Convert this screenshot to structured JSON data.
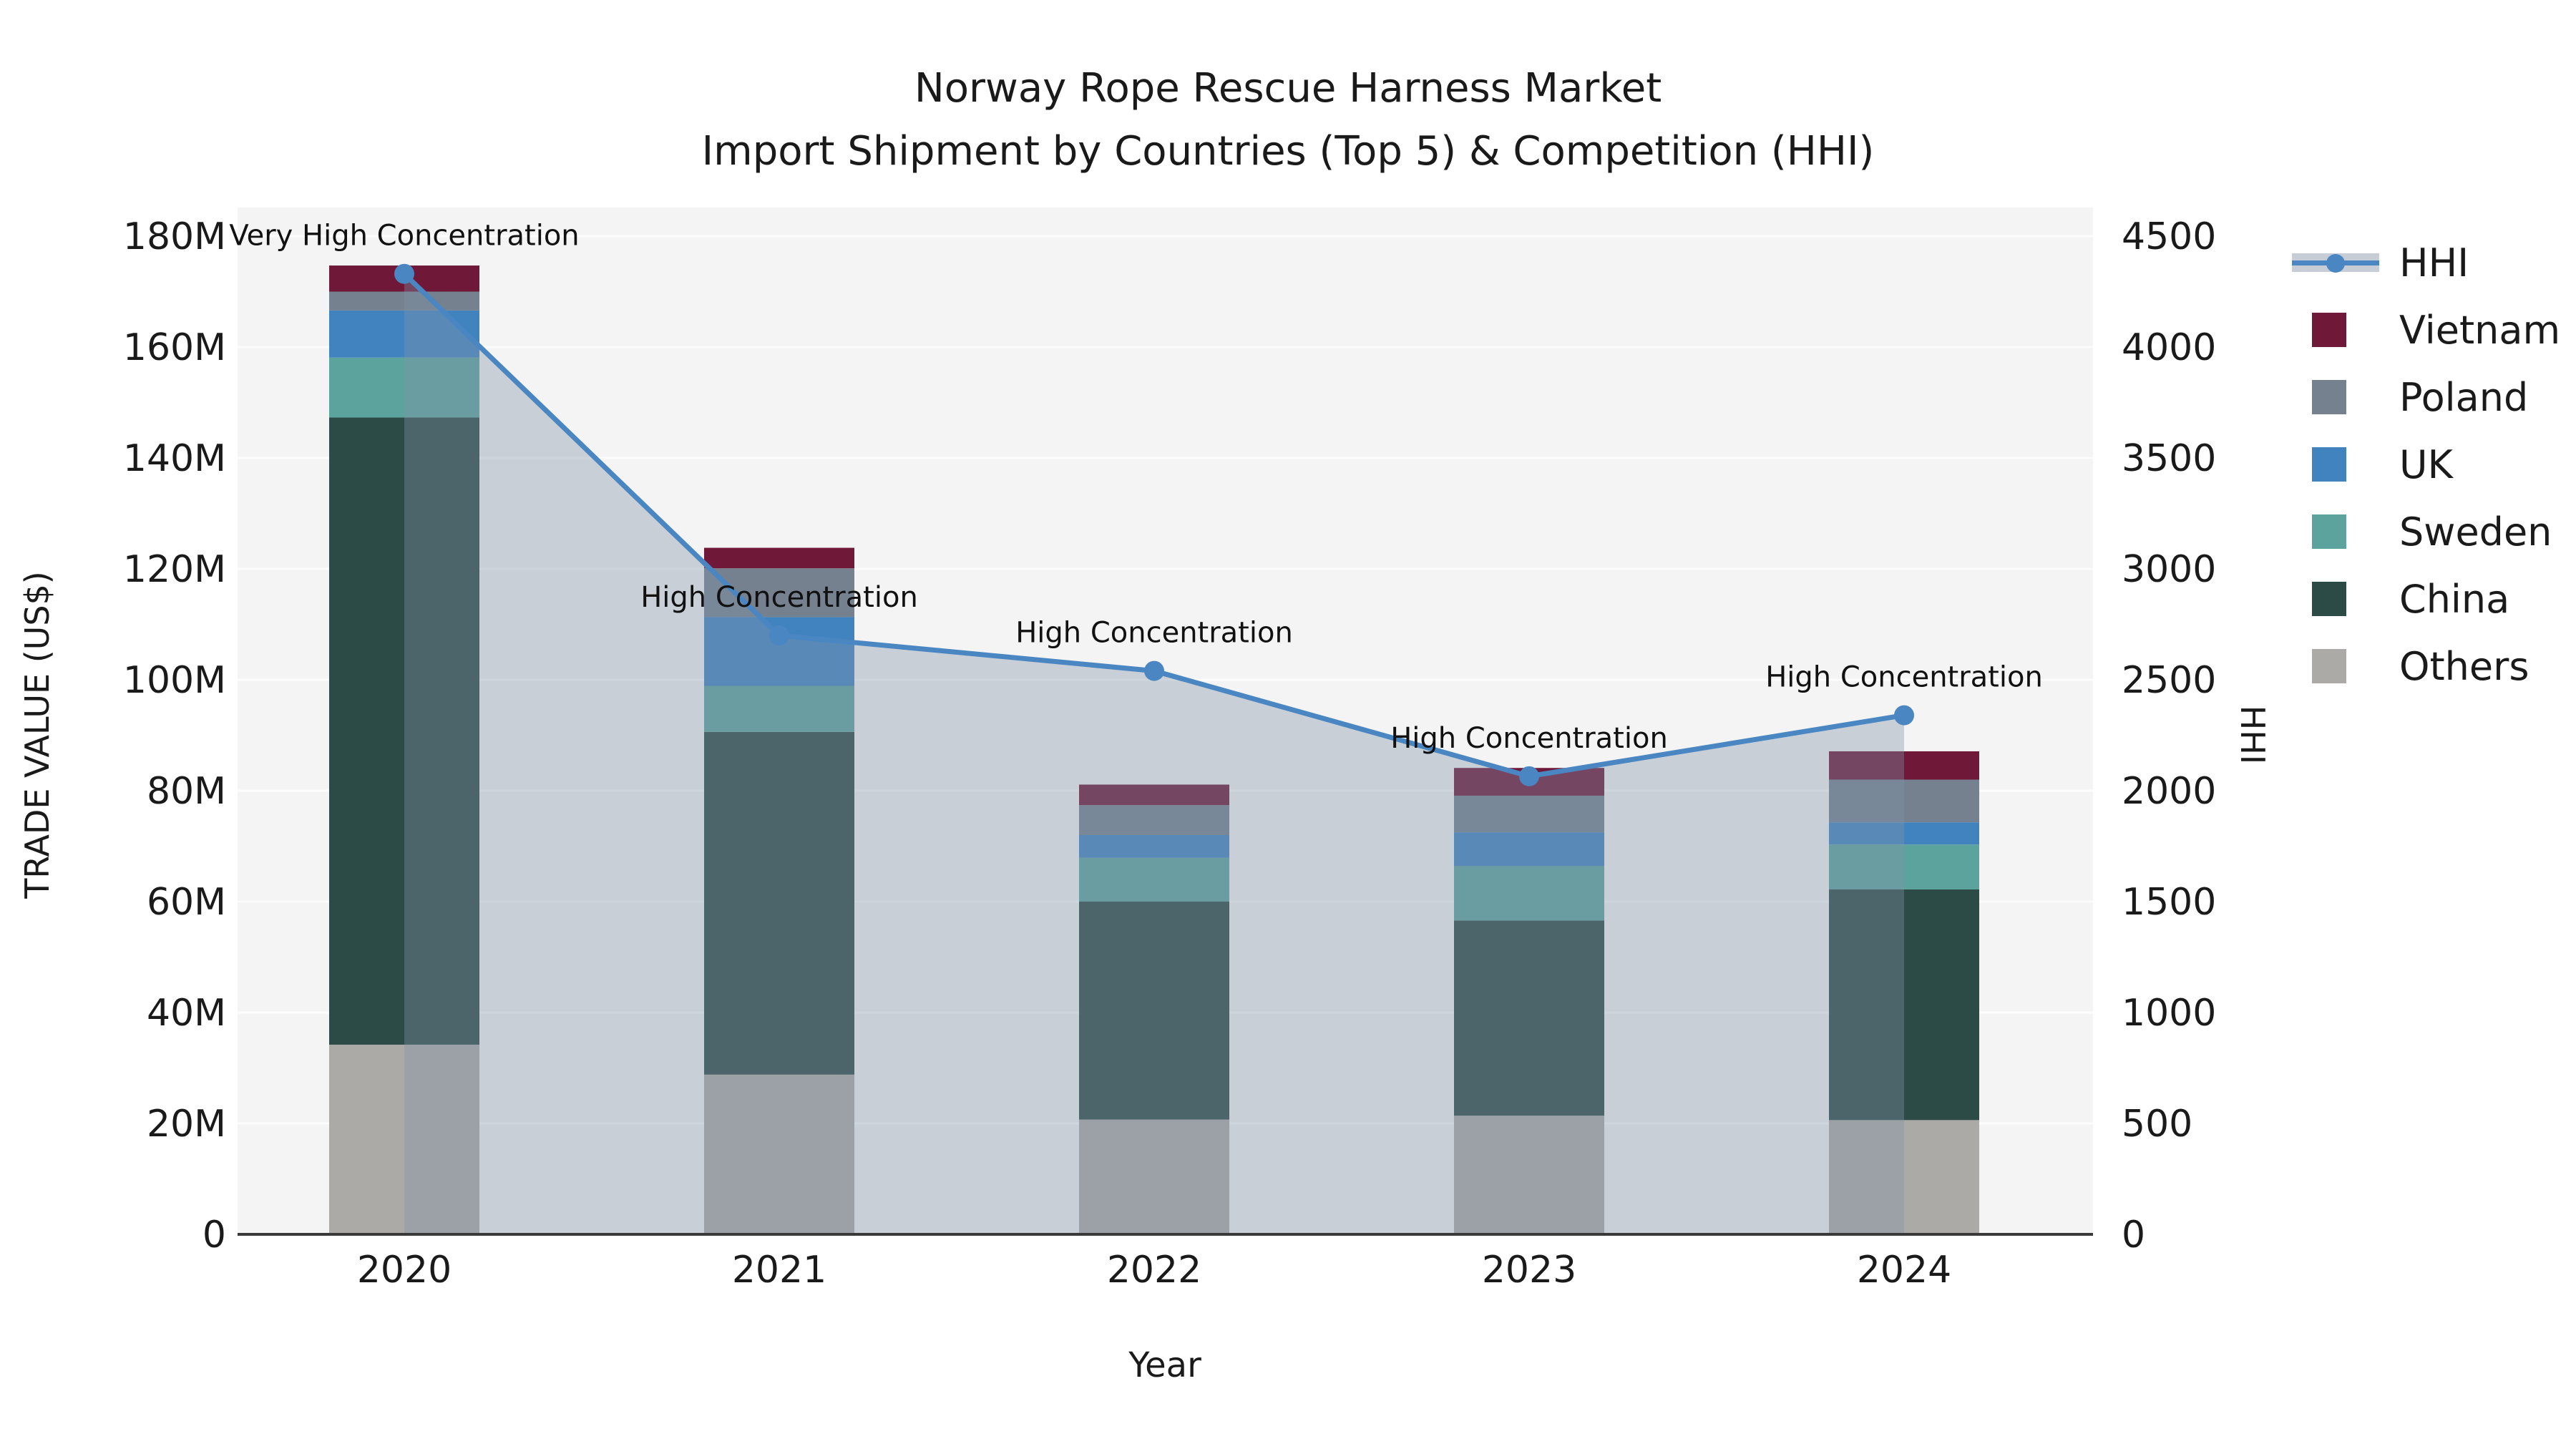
{
  "title": {
    "line1": "Norway Rope Rescue Harness Market",
    "line2": "Import Shipment by Countries (Top 5) & Competition (HHI)"
  },
  "chart_data": {
    "type": "bar+line",
    "categories": [
      "2020",
      "2021",
      "2022",
      "2023",
      "2024"
    ],
    "bar_value_unit": "millions USD",
    "series": [
      {
        "name": "Others",
        "color": "#ACAAA7",
        "values": [
          34.2,
          28.8,
          20.7,
          21.4,
          20.6
        ]
      },
      {
        "name": "China",
        "color": "#2C4A46",
        "values": [
          113.1,
          61.8,
          39.3,
          35.2,
          41.6
        ]
      },
      {
        "name": "Sweden",
        "color": "#5CA39D",
        "values": [
          10.8,
          8.3,
          7.9,
          9.8,
          8.1
        ]
      },
      {
        "name": "UK",
        "color": "#4183BF",
        "values": [
          8.5,
          12.4,
          4.1,
          6.1,
          4.0
        ]
      },
      {
        "name": "Poland",
        "color": "#75818F",
        "values": [
          3.4,
          8.8,
          5.4,
          6.6,
          7.7
        ]
      },
      {
        "name": "Vietnam",
        "color": "#6F1837",
        "values": [
          4.7,
          3.7,
          3.7,
          5.0,
          5.1
        ]
      }
    ],
    "line_series": {
      "name": "HHI",
      "color": "#4A86C2",
      "area_fill_color": "rgba(130,146,168,0.38)",
      "values": [
        4330,
        2700,
        2540,
        2065,
        2340
      ]
    },
    "annotations": [
      "Very High Concentration",
      "High Concentration",
      "High Concentration",
      "High Concentration",
      "High Concentration"
    ],
    "left_axis": {
      "label": "TRADE VALUE (US$)",
      "ticks": [
        "0",
        "20M",
        "40M",
        "60M",
        "80M",
        "100M",
        "120M",
        "140M",
        "160M",
        "180M"
      ],
      "max": 180
    },
    "right_axis": {
      "label": "HHI",
      "ticks": [
        "0",
        "500",
        "1000",
        "1500",
        "2000",
        "2500",
        "3000",
        "3500",
        "4000",
        "4500"
      ],
      "max": 4500
    },
    "x_axis": {
      "label": "Year"
    },
    "legend_order": [
      "HHI",
      "Vietnam",
      "Poland",
      "UK",
      "Sweden",
      "China",
      "Others"
    ],
    "style": {
      "plot_bg": "#F4F4F4",
      "grid_color": "#FCFCFC",
      "spine_color": "#3A3A3A",
      "text_color": "#1A1A1A"
    },
    "layout": {
      "grid": "horizontal",
      "legend_position": "right"
    }
  }
}
